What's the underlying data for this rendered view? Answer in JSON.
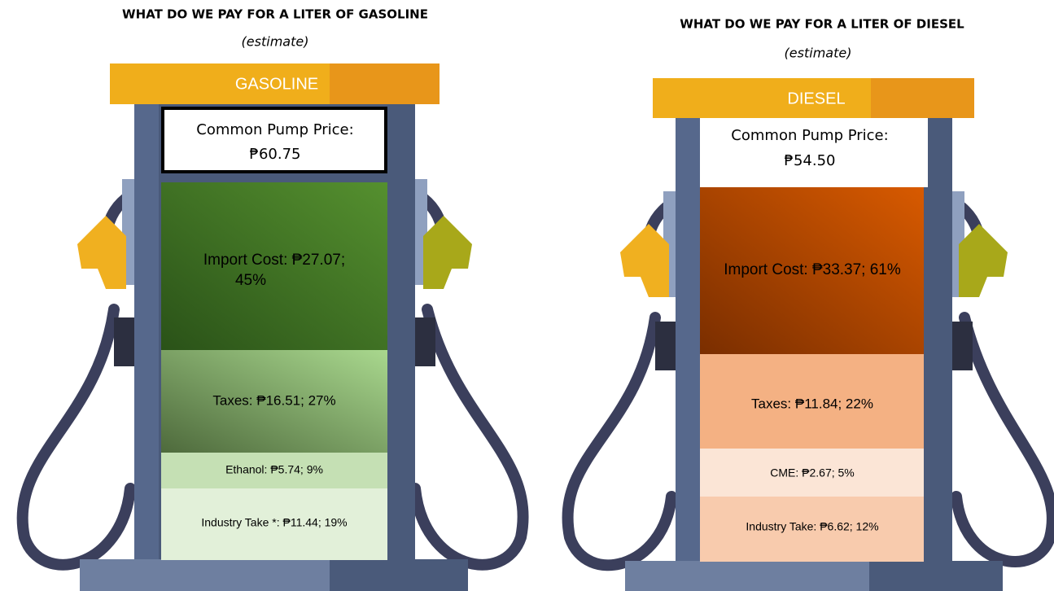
{
  "panels": [
    {
      "title": "WHAT DO WE PAY FOR A LITER OF GASOLINE",
      "subtitle": "(estimate)",
      "sign": "GASOLINE",
      "price_label": "Common Pump Price:",
      "price": "₱60.75",
      "segments": [
        "Import Cost: ₱27.07;",
        "45%",
        "Taxes: ₱16.51; 27%",
        "Ethanol: ₱5.74; 9%",
        "Industry Take *: ₱11.44; 19%"
      ]
    },
    {
      "title": "WHAT DO WE PAY FOR A LITER OF DIESEL",
      "subtitle": "(estimate)",
      "sign": "DIESEL",
      "price_label": "Common Pump Price:",
      "price": "₱54.50",
      "segments": [
        "Import Cost: ₱33.37; 61%",
        "Taxes: ₱11.84; 22%",
        "CME: ₱2.67; 5%",
        "Industry Take: ₱6.62; 12%"
      ]
    }
  ]
}
